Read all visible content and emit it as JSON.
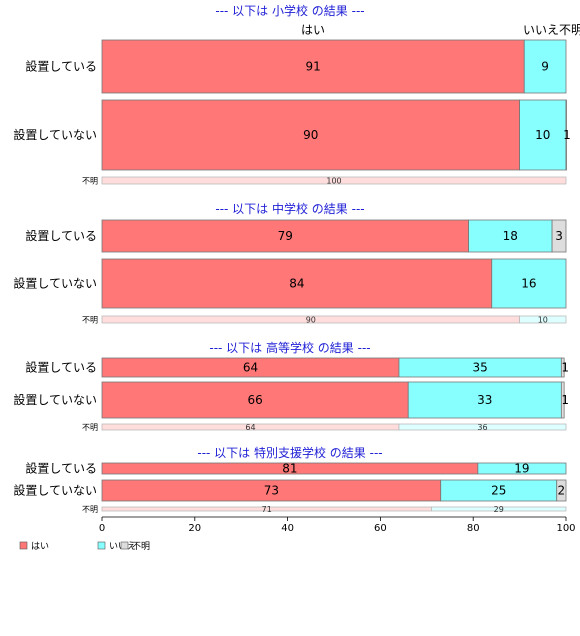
{
  "chart_data": {
    "type": "bar",
    "orientation": "horizontal-stacked",
    "categories_legend": [
      "はい",
      "いいえ",
      "不明"
    ],
    "colors": {
      "yes": "#ff7777",
      "no": "#88ffff",
      "unknown": "#dddddd",
      "yes_light": "#ffdddd",
      "no_light": "#ddffff",
      "title": "#1f1fd6"
    },
    "header_labels": {
      "yes": "はい",
      "no_unknown": "いいえ不明"
    },
    "xlim": [
      0,
      100
    ],
    "xticks": [
      "0",
      "20",
      "40",
      "60",
      "80",
      "100"
    ],
    "panels": [
      {
        "title": "--- 以下は 小学校 の結果 ---",
        "rows": [
          {
            "label": "設置している",
            "values": [
              91,
              9,
              0
            ],
            "labels": [
              "91",
              "9",
              ""
            ]
          },
          {
            "label": "設置していない",
            "values": [
              90,
              10,
              0.6
            ],
            "labels": [
              "90",
              "10",
              "1"
            ]
          },
          {
            "label": "不明",
            "values": [
              100,
              0,
              0
            ],
            "labels": [
              "100",
              "",
              ""
            ],
            "small": true
          }
        ]
      },
      {
        "title": "--- 以下は 中学校 の結果 ---",
        "rows": [
          {
            "label": "設置している",
            "values": [
              79,
              18,
              3
            ],
            "labels": [
              "79",
              "18",
              "3"
            ]
          },
          {
            "label": "設置していない",
            "values": [
              84,
              16,
              0
            ],
            "labels": [
              "84",
              "16",
              ""
            ]
          },
          {
            "label": "不明",
            "values": [
              90,
              10,
              0
            ],
            "labels": [
              "90",
              "10",
              ""
            ],
            "small": true
          }
        ]
      },
      {
        "title": "--- 以下は 高等学校 の結果 ---",
        "rows": [
          {
            "label": "設置している",
            "values": [
              64,
              35,
              0.6
            ],
            "labels": [
              "64",
              "35",
              "1"
            ]
          },
          {
            "label": "設置していない",
            "values": [
              66,
              33,
              0.6
            ],
            "labels": [
              "66",
              "33",
              "1"
            ]
          },
          {
            "label": "不明",
            "values": [
              64,
              36,
              0
            ],
            "labels": [
              "64",
              "36",
              ""
            ],
            "small": true
          }
        ]
      },
      {
        "title": "--- 以下は 特別支援学校 の結果 ---",
        "rows": [
          {
            "label": "設置している",
            "values": [
              81,
              19,
              0
            ],
            "labels": [
              "81",
              "19",
              ""
            ]
          },
          {
            "label": "設置していない",
            "values": [
              73,
              25,
              2
            ],
            "labels": [
              "73",
              "25",
              "2"
            ]
          },
          {
            "label": "不明",
            "values": [
              71,
              29,
              0
            ],
            "labels": [
              "71",
              "29",
              ""
            ],
            "small": true
          }
        ]
      }
    ]
  }
}
